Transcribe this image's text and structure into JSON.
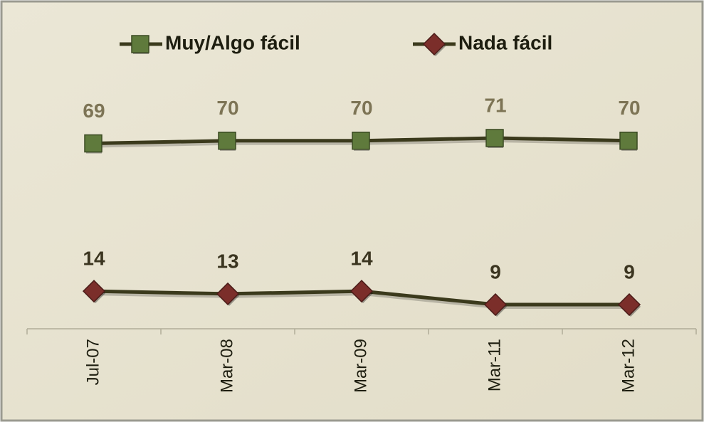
{
  "chart_data": {
    "type": "line",
    "categories": [
      "Jul-07",
      "Mar-08",
      "Mar-09",
      "Mar-11",
      "Mar-12"
    ],
    "series": [
      {
        "name": "Muy/Algo fácil",
        "color": "#5f7a3c",
        "values": [
          69,
          70,
          70,
          71,
          70
        ]
      },
      {
        "name": "Nada fácil",
        "color": "#7b2e2a",
        "values": [
          14,
          13,
          14,
          9,
          9
        ]
      }
    ],
    "ylim": [
      0,
      80
    ]
  }
}
